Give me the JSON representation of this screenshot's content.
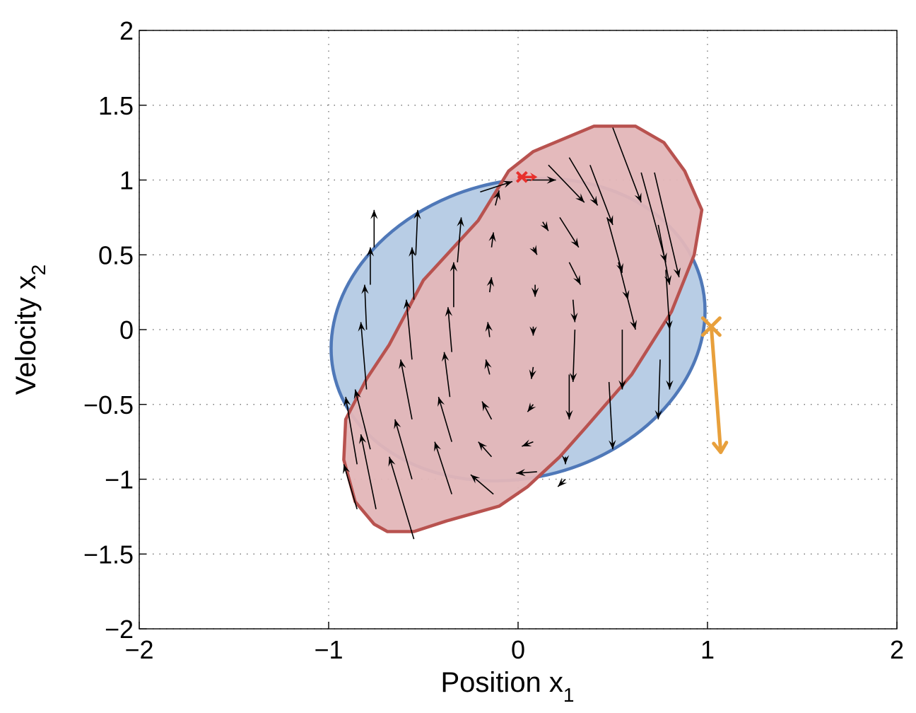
{
  "chart_data": {
    "type": "scatter",
    "title": "",
    "xlabel": "Position x",
    "xlabel_sub": "1",
    "ylabel": "Velocity x",
    "ylabel_sub": "2",
    "xlim": [
      -2,
      2
    ],
    "ylim": [
      -2,
      2
    ],
    "xticks": [
      -2,
      -1,
      0,
      1,
      2
    ],
    "xtick_labels": [
      "−2",
      "−1",
      "0",
      "1",
      "2"
    ],
    "yticks": [
      2,
      1.5,
      1,
      0.5,
      0,
      -0.5,
      -1,
      -1.5,
      -2
    ],
    "ytick_labels": [
      "2",
      "1.5",
      "1",
      "0.5",
      "0",
      "−0.5",
      "−1",
      "−1.5",
      "−2"
    ],
    "grid": true,
    "colors": {
      "blue_fill": "#b8cde5",
      "blue_edge": "#4f78b8",
      "red_fill": "#e3b6b8",
      "red_edge": "#b8524f",
      "orange": "#e8a03c",
      "red_marker": "#e8302c",
      "arrow": "#000000"
    },
    "blue_region": {
      "shape": "ellipse",
      "center": [
        0,
        0
      ],
      "semi_axis_x": 1.0,
      "semi_axis_y": 1.0,
      "tilt_deg": -15,
      "aspect_y_over_x_radius": 0.99
    },
    "red_region": {
      "vertices": [
        [
          -0.21,
          0.73
        ],
        [
          -0.5,
          0.33
        ],
        [
          -0.68,
          -0.1
        ],
        [
          -0.8,
          -0.33
        ],
        [
          -0.91,
          -0.6
        ],
        [
          -0.92,
          -0.87
        ],
        [
          -0.86,
          -1.15
        ],
        [
          -0.76,
          -1.3
        ],
        [
          -0.69,
          -1.35
        ],
        [
          -0.55,
          -1.35
        ],
        [
          -0.38,
          -1.28
        ],
        [
          -0.1,
          -1.18
        ],
        [
          0.05,
          -1.05
        ],
        [
          0.22,
          -0.85
        ],
        [
          0.36,
          -0.65
        ],
        [
          0.6,
          -0.3
        ],
        [
          0.81,
          0.12
        ],
        [
          0.93,
          0.5
        ],
        [
          0.97,
          0.8
        ],
        [
          0.88,
          1.06
        ],
        [
          0.77,
          1.25
        ],
        [
          0.62,
          1.36
        ],
        [
          0.4,
          1.36
        ],
        [
          0.08,
          1.19
        ],
        [
          -0.05,
          1.06
        ]
      ]
    },
    "vector_field": [
      [
        -0.85,
        -1.2,
        -0.92,
        -0.9
      ],
      [
        -0.85,
        -0.9,
        -0.91,
        -0.45
      ],
      [
        -0.75,
        -1.2,
        -0.83,
        -0.7
      ],
      [
        -0.78,
        -0.8,
        -0.86,
        -0.4
      ],
      [
        -0.8,
        -0.4,
        -0.83,
        0.05
      ],
      [
        -0.8,
        0.0,
        -0.81,
        0.3
      ],
      [
        -0.78,
        0.3,
        -0.78,
        0.55
      ],
      [
        -0.76,
        0.55,
        -0.76,
        0.8
      ],
      [
        -0.55,
        -1.4,
        -0.68,
        -0.85
      ],
      [
        -0.56,
        -1.0,
        -0.65,
        -0.6
      ],
      [
        -0.56,
        -0.6,
        -0.62,
        -0.2
      ],
      [
        -0.56,
        -0.2,
        -0.59,
        0.2
      ],
      [
        -0.55,
        0.2,
        -0.56,
        0.55
      ],
      [
        -0.54,
        0.5,
        -0.53,
        0.8
      ],
      [
        -0.35,
        -1.1,
        -0.44,
        -0.75
      ],
      [
        -0.35,
        -0.75,
        -0.42,
        -0.45
      ],
      [
        -0.36,
        -0.45,
        -0.39,
        -0.15
      ],
      [
        -0.35,
        -0.15,
        -0.37,
        0.15
      ],
      [
        -0.34,
        0.15,
        -0.34,
        0.45
      ],
      [
        -0.32,
        0.45,
        -0.3,
        0.75
      ],
      [
        -0.13,
        -1.1,
        -0.25,
        -0.97
      ],
      [
        -0.14,
        -0.85,
        -0.21,
        -0.75
      ],
      [
        -0.14,
        -0.6,
        -0.19,
        -0.48
      ],
      [
        -0.15,
        -0.3,
        -0.17,
        -0.2
      ],
      [
        -0.15,
        -0.05,
        -0.16,
        0.05
      ],
      [
        -0.15,
        0.25,
        -0.14,
        0.35
      ],
      [
        -0.14,
        0.55,
        -0.13,
        0.65
      ],
      [
        -0.12,
        0.83,
        -0.1,
        0.93
      ],
      [
        -0.2,
        0.92,
        -0.03,
        0.99
      ],
      [
        0.1,
        -0.95,
        -0.01,
        -0.96
      ],
      [
        0.08,
        -0.75,
        0.02,
        -0.78
      ],
      [
        0.08,
        -0.5,
        0.05,
        -0.55
      ],
      [
        0.08,
        -0.25,
        0.07,
        -0.33
      ],
      [
        0.08,
        0.02,
        0.08,
        -0.04
      ],
      [
        0.09,
        0.3,
        0.09,
        0.22
      ],
      [
        0.08,
        0.55,
        0.1,
        0.5
      ],
      [
        0.13,
        0.72,
        0.16,
        0.66
      ],
      [
        0.04,
        1.0,
        0.2,
        1.0
      ],
      [
        0.25,
        -1.0,
        0.21,
        -1.05
      ],
      [
        0.25,
        -0.85,
        0.25,
        -0.9
      ],
      [
        0.27,
        -0.3,
        0.27,
        -0.6
      ],
      [
        0.3,
        0.0,
        0.29,
        -0.35
      ],
      [
        0.29,
        0.2,
        0.3,
        0.05
      ],
      [
        0.27,
        0.45,
        0.33,
        0.3
      ],
      [
        0.22,
        0.75,
        0.32,
        0.55
      ],
      [
        0.16,
        1.1,
        0.35,
        0.85
      ],
      [
        0.48,
        -0.35,
        0.5,
        -0.8
      ],
      [
        0.55,
        0.0,
        0.55,
        -0.4
      ],
      [
        0.58,
        0.2,
        0.62,
        0.0
      ],
      [
        0.53,
        0.45,
        0.58,
        0.2
      ],
      [
        0.47,
        0.75,
        0.55,
        0.38
      ],
      [
        0.38,
        1.1,
        0.5,
        0.7
      ],
      [
        0.27,
        1.15,
        0.42,
        0.83
      ],
      [
        0.75,
        -0.2,
        0.74,
        -0.6
      ],
      [
        0.8,
        0.1,
        0.8,
        -0.4
      ],
      [
        0.78,
        0.4,
        0.8,
        0.0
      ],
      [
        0.74,
        0.7,
        0.8,
        0.3
      ],
      [
        0.65,
        1.05,
        0.78,
        0.45
      ],
      [
        0.5,
        1.35,
        0.65,
        0.85
      ],
      [
        0.72,
        1.05,
        0.85,
        0.35
      ]
    ],
    "red_marker": {
      "x": 0.02,
      "y": 1.02
    },
    "orange_marker": {
      "x": 1.02,
      "y": 0.02,
      "arrow_to": [
        1.07,
        -0.82
      ]
    }
  }
}
